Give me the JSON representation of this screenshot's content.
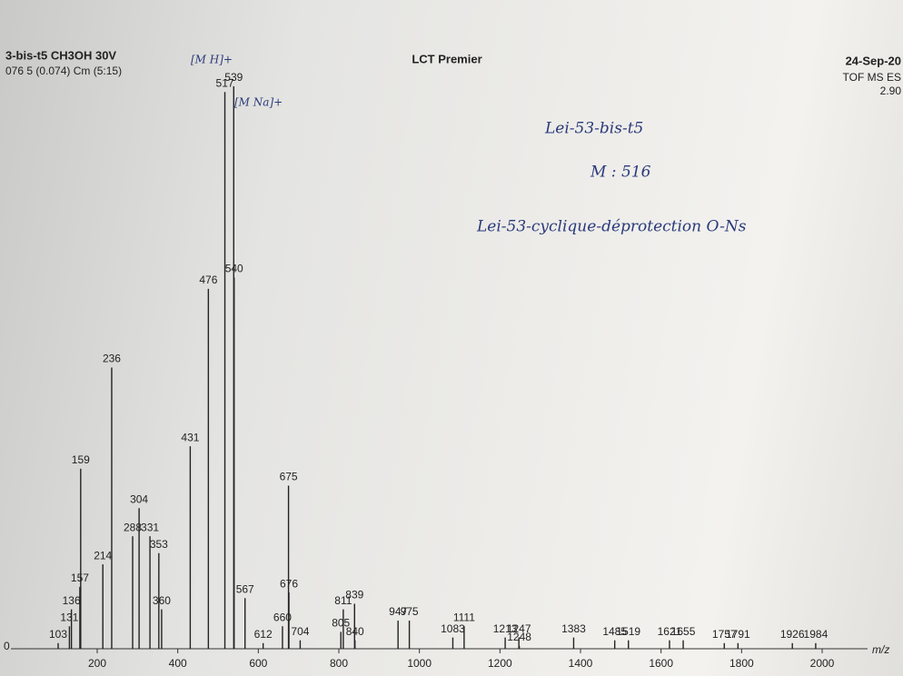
{
  "chart_data": {
    "type": "bar",
    "title": "3-bis-t5  CH3OH  30V",
    "subtitle": "076 5 (0.074) Cm (5:15)",
    "instrument": "LCT Premier",
    "date": "24-Sep-20",
    "mode": "TOF MS ES",
    "intensity": "2.90",
    "x_label": "m/z",
    "annotations": [
      "[M H]+",
      "[M Na]+",
      "Lei-53-bis-t5",
      "M : 516",
      "Lei-53-cyclique-déprotection O-Ns"
    ],
    "x": [
      103,
      131,
      136,
      157,
      159,
      214,
      236,
      288,
      304,
      331,
      353,
      360,
      431,
      476,
      517,
      539,
      540,
      567,
      612,
      660,
      675,
      676,
      704,
      805,
      811,
      839,
      840,
      947,
      975,
      1083,
      1111,
      1213,
      1247,
      1248,
      1383,
      1485,
      1519,
      1621,
      1655,
      1757,
      1791,
      1926,
      1984
    ],
    "values": [
      1,
      4,
      7,
      11,
      32,
      15,
      50,
      20,
      25,
      20,
      17,
      7,
      36,
      64,
      99,
      100,
      66,
      9,
      1,
      4,
      29,
      10,
      1.5,
      3,
      7,
      8,
      1.5,
      5,
      5,
      2,
      4,
      2,
      2,
      0.5,
      2,
      1.5,
      1.5,
      1.5,
      1.5,
      1,
      1,
      1,
      1
    ],
    "color": "#222222",
    "xlim": [
      50,
      2150
    ],
    "ylim": [
      0,
      100
    ],
    "xticks": [
      200,
      400,
      600,
      800,
      1000,
      1200,
      1400,
      1600,
      1800,
      2000
    ],
    "yticks": [
      0
    ]
  }
}
